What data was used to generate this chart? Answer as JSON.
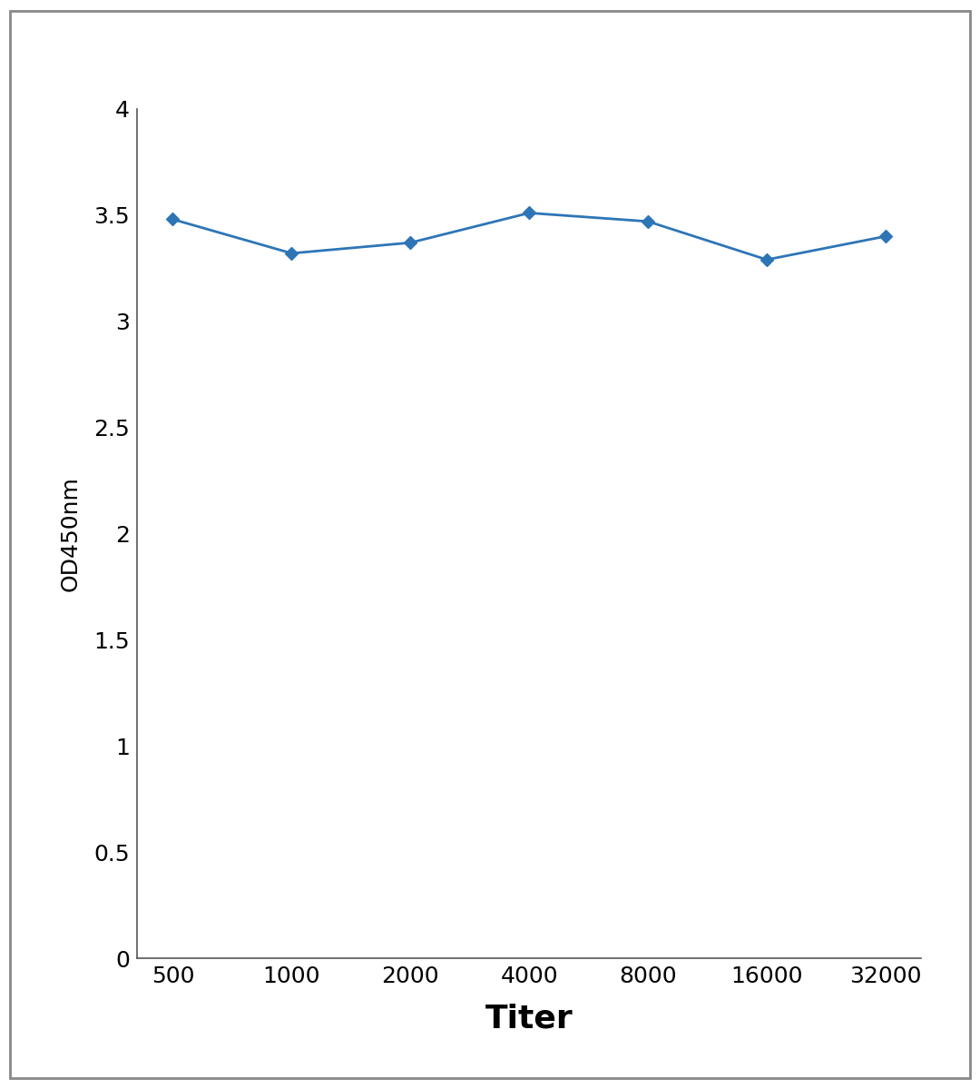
{
  "x_labels": [
    "500",
    "1000",
    "2000",
    "4000",
    "8000",
    "16000",
    "32000"
  ],
  "x_values": [
    500,
    1000,
    2000,
    4000,
    8000,
    16000,
    32000
  ],
  "y_values": [
    3.48,
    3.32,
    3.37,
    3.51,
    3.47,
    3.29,
    3.4
  ],
  "xlabel": "Titer",
  "ylabel": "OD450nm",
  "ylim": [
    0,
    4.0
  ],
  "yticks": [
    0,
    0.5,
    1.0,
    1.5,
    2.0,
    2.5,
    3.0,
    3.5,
    4.0
  ],
  "ytick_labels": [
    "0",
    "0.5",
    "1",
    "1.5",
    "2",
    "2.5",
    "3",
    "3.5",
    "4"
  ],
  "line_color": "#2E75B6",
  "marker": "D",
  "marker_size": 7,
  "line_width": 2.0,
  "background_color": "#ffffff",
  "outer_border_color": "#888888",
  "xlabel_fontsize": 26,
  "ylabel_fontsize": 18,
  "tick_fontsize": 18
}
